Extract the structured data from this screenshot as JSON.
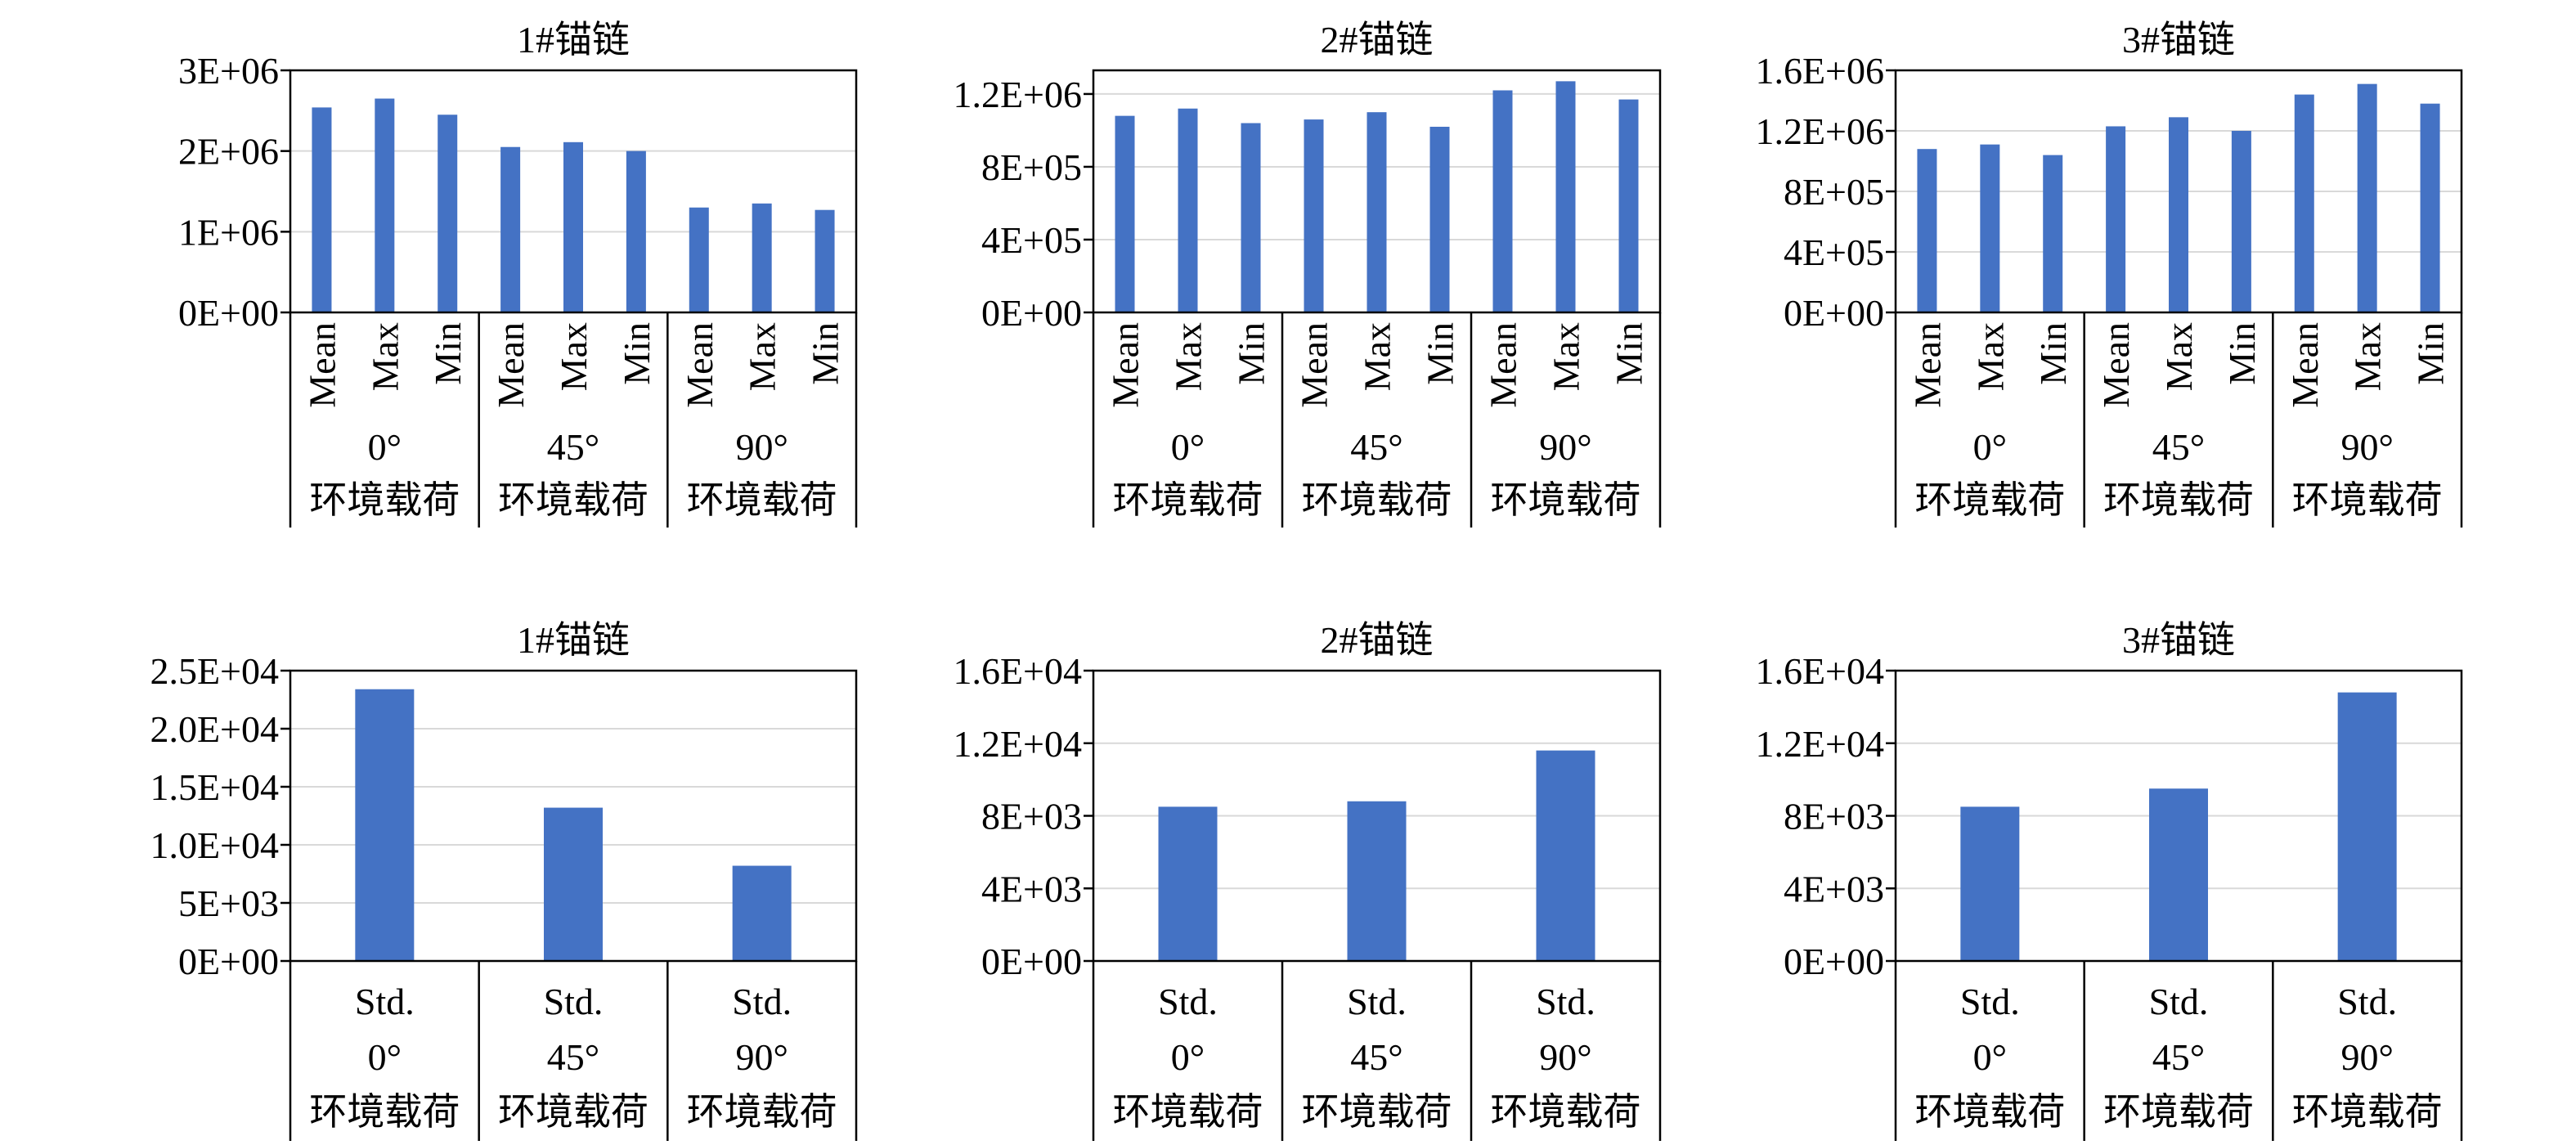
{
  "chart_data": [
    {
      "type": "bar",
      "title": "1#锚链",
      "yticks": [
        "0E+00",
        "1E+06",
        "2E+06",
        "3E+06"
      ],
      "ylim": [
        0,
        3000000
      ],
      "categories": [
        "Mean",
        "Max",
        "Min",
        "Mean",
        "Max",
        "Min",
        "Mean",
        "Max",
        "Min"
      ],
      "groups": [
        {
          "angle": "0°",
          "label": "环境载荷"
        },
        {
          "angle": "45°",
          "label": "环境载荷"
        },
        {
          "angle": "90°",
          "label": "环境载荷"
        }
      ],
      "values": [
        2540000,
        2650000,
        2450000,
        2050000,
        2110000,
        2000000,
        1300000,
        1350000,
        1270000
      ]
    },
    {
      "type": "bar",
      "title": "2#锚链",
      "yticks": [
        "0E+00",
        "4E+05",
        "8E+05",
        "1.2E+06"
      ],
      "ylim": [
        0,
        1330000
      ],
      "categories": [
        "Mean",
        "Max",
        "Min",
        "Mean",
        "Max",
        "Min",
        "Mean",
        "Max",
        "Min"
      ],
      "groups": [
        {
          "angle": "0°",
          "label": "环境载荷"
        },
        {
          "angle": "45°",
          "label": "环境载荷"
        },
        {
          "angle": "90°",
          "label": "环境载荷"
        }
      ],
      "values": [
        1080000,
        1120000,
        1040000,
        1060000,
        1100000,
        1020000,
        1220000,
        1270000,
        1170000
      ]
    },
    {
      "type": "bar",
      "title": "3#锚链",
      "yticks": [
        "0E+00",
        "4E+05",
        "8E+05",
        "1.2E+06",
        "1.6E+06"
      ],
      "ylim": [
        0,
        1600000
      ],
      "categories": [
        "Mean",
        "Max",
        "Min",
        "Mean",
        "Max",
        "Min",
        "Mean",
        "Max",
        "Min"
      ],
      "groups": [
        {
          "angle": "0°",
          "label": "环境载荷"
        },
        {
          "angle": "45°",
          "label": "环境载荷"
        },
        {
          "angle": "90°",
          "label": "环境载荷"
        }
      ],
      "values": [
        1080000,
        1110000,
        1040000,
        1230000,
        1290000,
        1200000,
        1440000,
        1510000,
        1380000
      ]
    },
    {
      "type": "bar",
      "title": "1#锚链",
      "yticks": [
        "0E+00",
        "5E+03",
        "1.0E+04",
        "1.5E+04",
        "2.0E+04",
        "2.5E+04"
      ],
      "ylim": [
        0,
        25000
      ],
      "categories": [
        "Std.",
        "Std.",
        "Std."
      ],
      "groups": [
        {
          "angle": "0°",
          "label": "环境载荷"
        },
        {
          "angle": "45°",
          "label": "环境载荷"
        },
        {
          "angle": "90°",
          "label": "环境载荷"
        }
      ],
      "values": [
        23400,
        13200,
        8200
      ]
    },
    {
      "type": "bar",
      "title": "2#锚链",
      "yticks": [
        "0E+00",
        "4E+03",
        "8E+03",
        "1.2E+04",
        "1.6E+04"
      ],
      "ylim": [
        0,
        16000
      ],
      "categories": [
        "Std.",
        "Std.",
        "Std."
      ],
      "groups": [
        {
          "angle": "0°",
          "label": "环境载荷"
        },
        {
          "angle": "45°",
          "label": "环境载荷"
        },
        {
          "angle": "90°",
          "label": "环境载荷"
        }
      ],
      "values": [
        8500,
        8800,
        11600
      ]
    },
    {
      "type": "bar",
      "title": "3#锚链",
      "yticks": [
        "0E+00",
        "4E+03",
        "8E+03",
        "1.2E+04",
        "1.6E+04"
      ],
      "ylim": [
        0,
        16000
      ],
      "categories": [
        "Std.",
        "Std.",
        "Std."
      ],
      "groups": [
        {
          "angle": "0°",
          "label": "环境载荷"
        },
        {
          "angle": "45°",
          "label": "环境载荷"
        },
        {
          "angle": "90°",
          "label": "环境载荷"
        }
      ],
      "values": [
        8500,
        9500,
        14800
      ]
    }
  ],
  "colors": {
    "bar": "#4472C4",
    "grid": "#d9d9d9",
    "axis": "#000000"
  }
}
